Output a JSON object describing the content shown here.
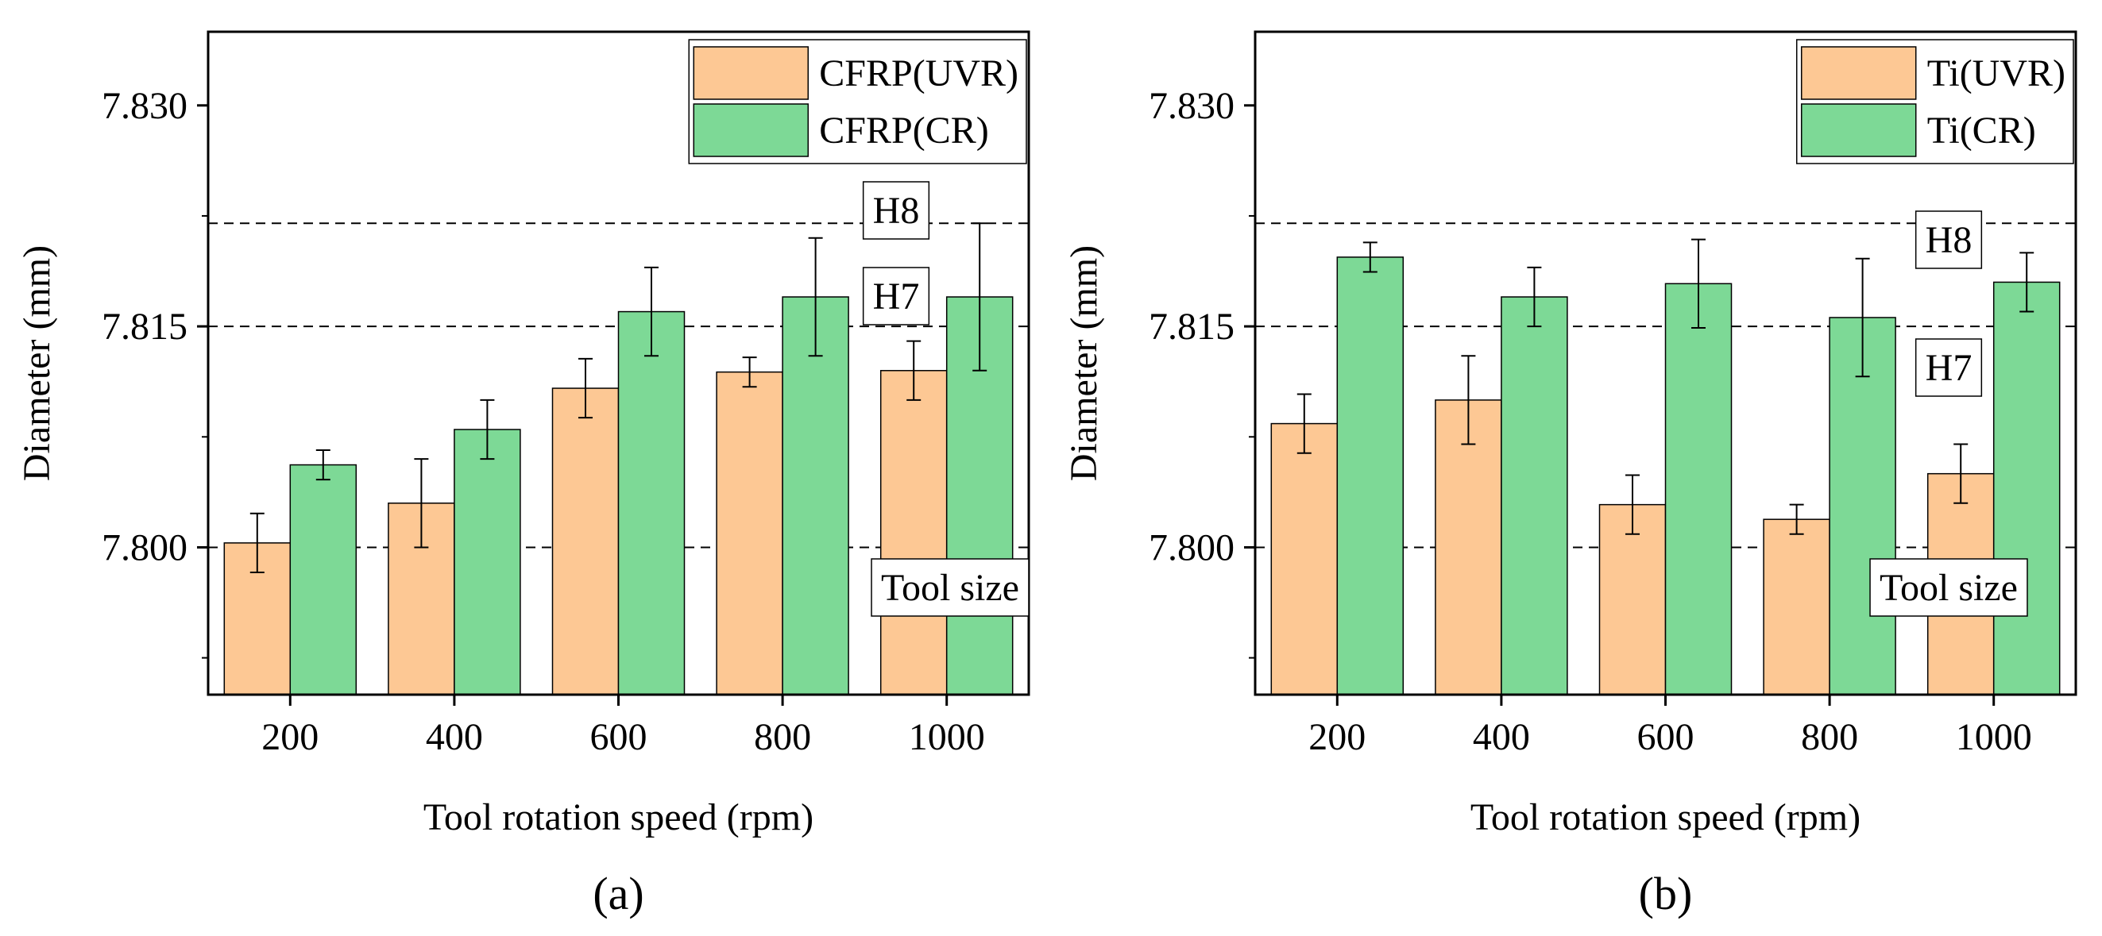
{
  "chart_data": [
    {
      "type": "bar",
      "caption": "(a)",
      "xlabel": "Tool rotation speed (rpm)",
      "ylabel": "Diameter (mm)",
      "ylim": [
        7.79,
        7.835
      ],
      "yticks": [
        "7.800",
        "7.815",
        "7.830"
      ],
      "categories": [
        "200",
        "400",
        "600",
        "800",
        "1000"
      ],
      "series": [
        {
          "name": "CFRP(UVR)",
          "color": "#FDC894",
          "values": [
            7.8003,
            7.803,
            7.8108,
            7.8119,
            7.812
          ],
          "errors": [
            0.002,
            0.003,
            0.002,
            0.001,
            0.002
          ]
        },
        {
          "name": "CFRP(CR)",
          "color": "#7DD996",
          "values": [
            7.8056,
            7.808,
            7.816,
            7.817,
            7.817
          ],
          "errors": [
            0.001,
            0.002,
            0.003,
            0.004,
            0.005
          ]
        }
      ],
      "reference_lines": [
        {
          "value": 7.822,
          "label": "H8"
        },
        {
          "value": 7.815,
          "label": "H7"
        },
        {
          "value": 7.8,
          "label": "Tool size"
        }
      ],
      "legend_position": "top-right"
    },
    {
      "type": "bar",
      "caption": "(b)",
      "xlabel": "Tool rotation speed (rpm)",
      "ylabel": "Diameter (mm)",
      "ylim": [
        7.79,
        7.835
      ],
      "yticks": [
        "7.800",
        "7.815",
        "7.830"
      ],
      "categories": [
        "200",
        "400",
        "600",
        "800",
        "1000"
      ],
      "series": [
        {
          "name": "Ti(UVR)",
          "color": "#FDC894",
          "values": [
            7.8084,
            7.81,
            7.8029,
            7.8019,
            7.805
          ],
          "errors": [
            0.002,
            0.003,
            0.002,
            0.001,
            0.002
          ]
        },
        {
          "name": "Ti(CR)",
          "color": "#7DD996",
          "values": [
            7.8197,
            7.817,
            7.8179,
            7.8156,
            7.818
          ],
          "errors": [
            0.001,
            0.002,
            0.003,
            0.004,
            0.002
          ]
        }
      ],
      "reference_lines": [
        {
          "value": 7.822,
          "label": "H8"
        },
        {
          "value": 7.815,
          "label": "H7"
        },
        {
          "value": 7.8,
          "label": "Tool size"
        }
      ],
      "legend_position": "top-right"
    }
  ]
}
